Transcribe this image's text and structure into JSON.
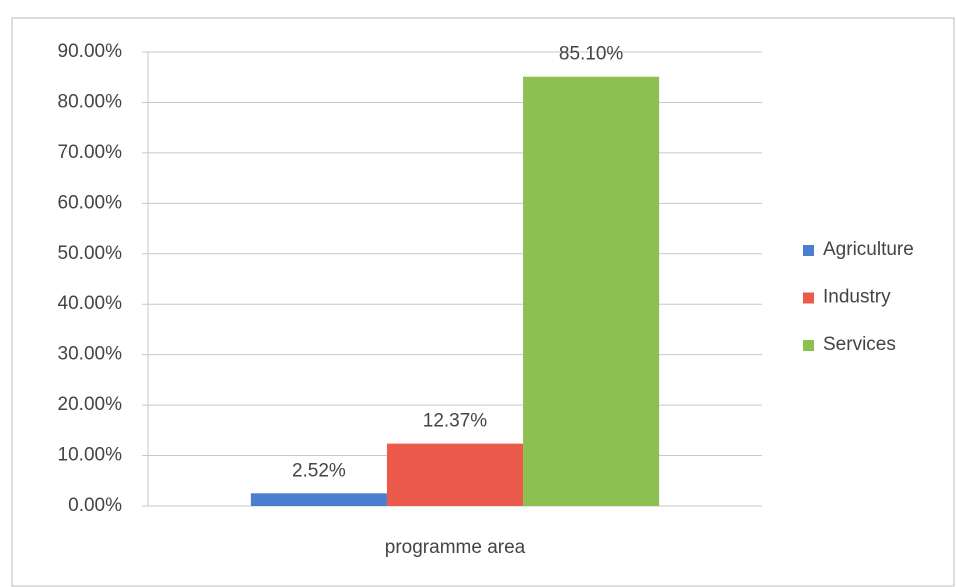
{
  "chart_data": {
    "type": "bar",
    "categories": [
      "programme area"
    ],
    "series": [
      {
        "name": "Agriculture",
        "color": "#4a7fd0",
        "values": [
          2.52
        ],
        "value_labels": [
          "2.52%"
        ]
      },
      {
        "name": "Industry",
        "color": "#ec5a4b",
        "values": [
          12.37
        ],
        "value_labels": [
          "12.37%"
        ]
      },
      {
        "name": "Services",
        "color": "#8cc152",
        "values": [
          85.1
        ],
        "value_labels": [
          "85.10%"
        ]
      }
    ],
    "ylim": [
      0,
      90
    ],
    "yticks": [
      {
        "value": 0,
        "label": "0.00%"
      },
      {
        "value": 10,
        "label": "10.00%"
      },
      {
        "value": 20,
        "label": "20.00%"
      },
      {
        "value": 30,
        "label": "30.00%"
      },
      {
        "value": 40,
        "label": "40.00%"
      },
      {
        "value": 50,
        "label": "50.00%"
      },
      {
        "value": 60,
        "label": "60.00%"
      },
      {
        "value": 70,
        "label": "70.00%"
      },
      {
        "value": 80,
        "label": "80.00%"
      },
      {
        "value": 90,
        "label": "90.00%"
      }
    ],
    "grid": true,
    "legend": "right"
  }
}
